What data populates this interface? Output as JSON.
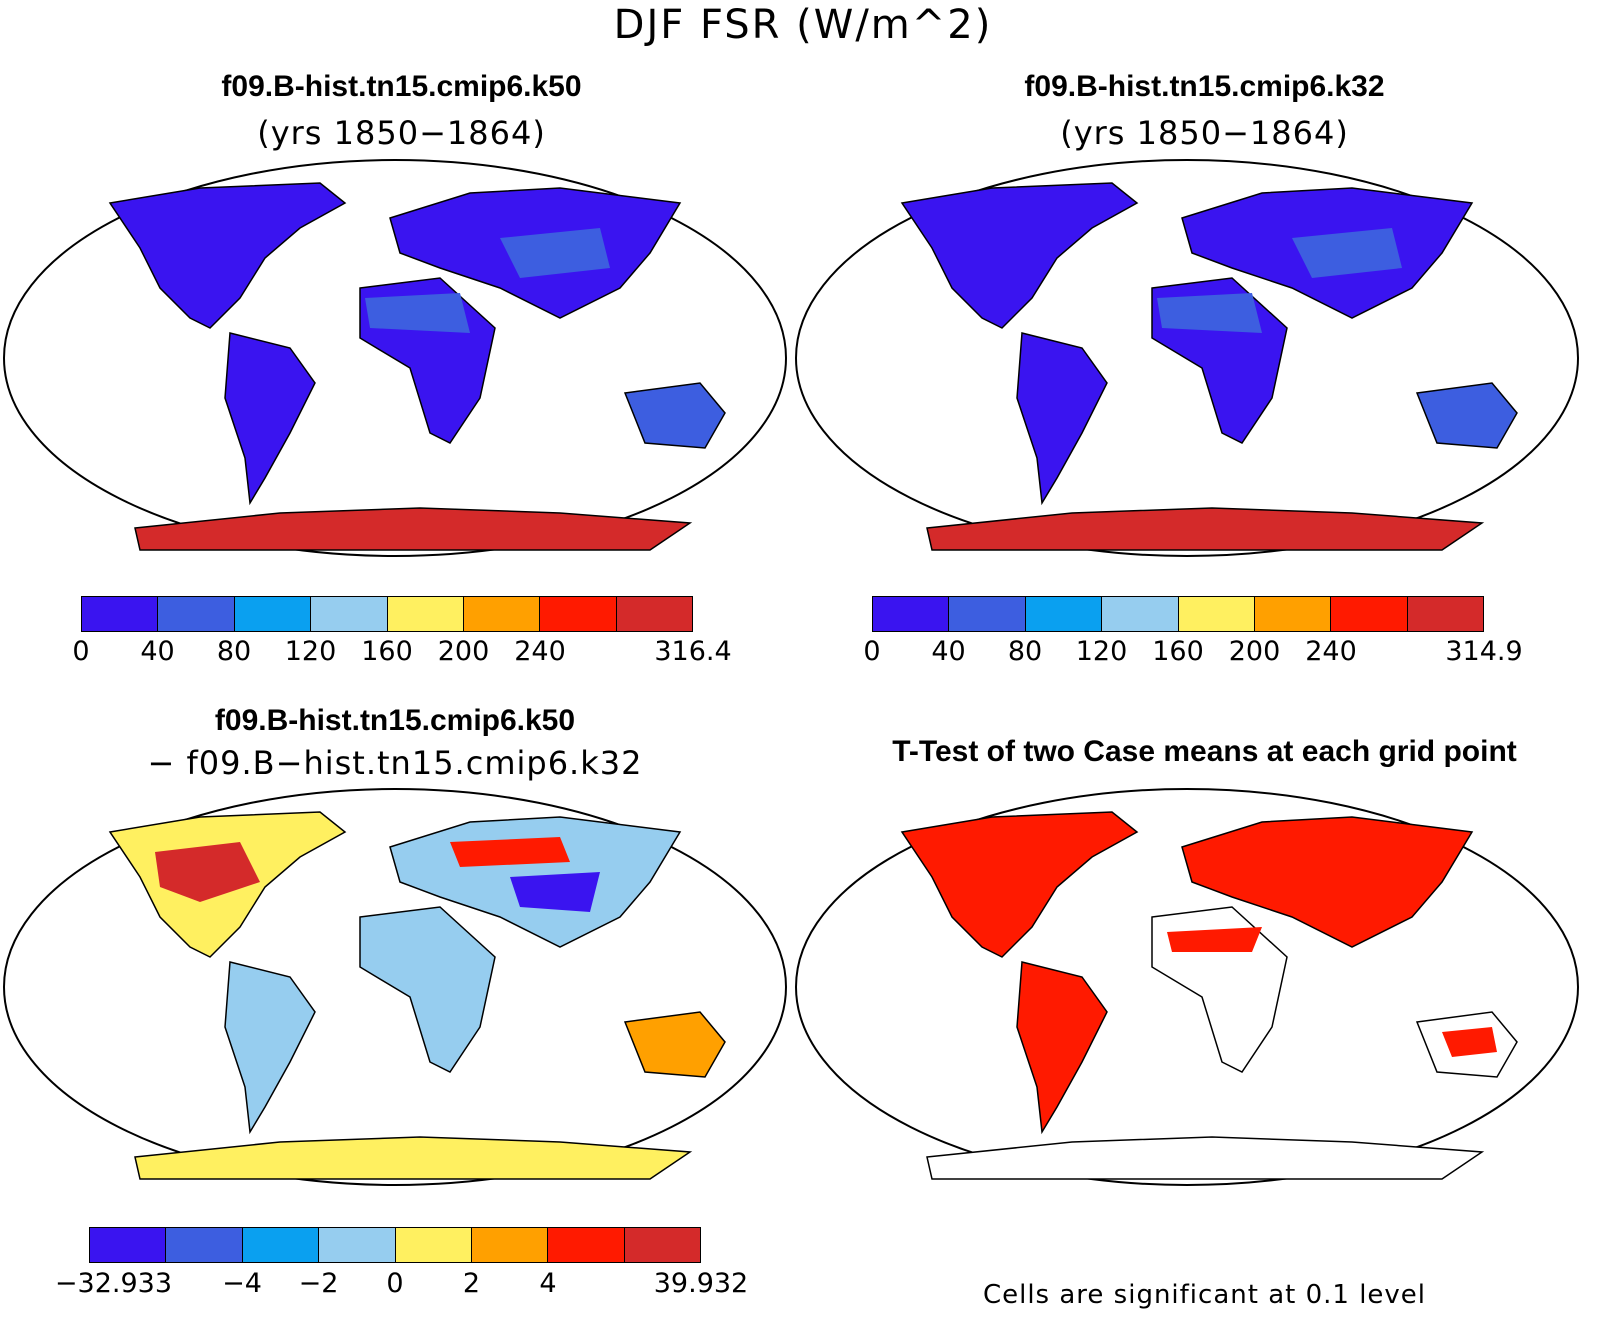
{
  "title": "DJF FSR (W/m^2)",
  "panels": [
    {
      "title": "f09.B-hist.tn15.cmip6.k50",
      "subtitle": "(yrs 1850−1864)",
      "colorbar": {
        "colors": [
          "#3a14f0",
          "#3d5ee0",
          "#0aa0f0",
          "#96cdef",
          "#fff060",
          "#ffa000",
          "#ff1a00",
          "#d42a2a"
        ],
        "ticks": [
          "0",
          "40",
          "80",
          "120",
          "160",
          "200",
          "240",
          "316.4"
        ]
      }
    },
    {
      "title": "f09.B-hist.tn15.cmip6.k32",
      "subtitle": "(yrs 1850−1864)",
      "colorbar": {
        "colors": [
          "#3a14f0",
          "#3d5ee0",
          "#0aa0f0",
          "#96cdef",
          "#fff060",
          "#ffa000",
          "#ff1a00",
          "#d42a2a"
        ],
        "ticks": [
          "0",
          "40",
          "80",
          "120",
          "160",
          "200",
          "240",
          "314.9"
        ]
      }
    },
    {
      "title": "f09.B-hist.tn15.cmip6.k50",
      "subtitle": "− f09.B−hist.tn15.cmip6.k32",
      "colorbar": {
        "colors": [
          "#3a14f0",
          "#3d5ee0",
          "#0aa0f0",
          "#96cdef",
          "#fff060",
          "#ffa000",
          "#ff1a00",
          "#d42a2a"
        ],
        "ticks": [
          "−32.933",
          "−4",
          "−2",
          "0",
          "2",
          "4",
          "39.932"
        ]
      }
    },
    {
      "title": "T-Test of two Case means at each grid point",
      "note": "Cells are significant at 0.1 level"
    }
  ]
}
